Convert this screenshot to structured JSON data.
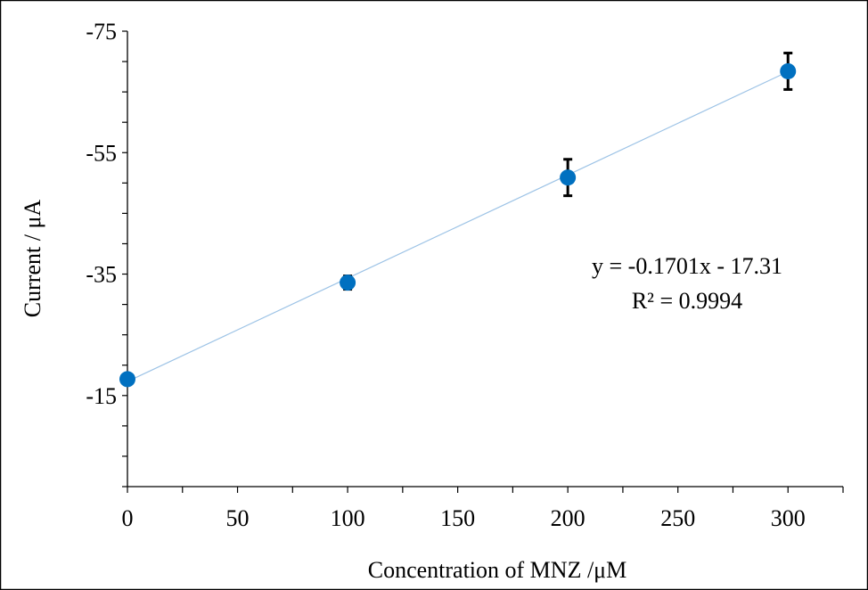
{
  "chart_data": {
    "type": "scatter",
    "xlabel": "Concentration of MNZ /μM",
    "ylabel": "Current  / μA",
    "xlim": [
      0,
      325
    ],
    "ylim": [
      -75,
      0
    ],
    "y_reversed": true,
    "x_ticks": [
      0,
      50,
      100,
      150,
      200,
      250,
      300
    ],
    "x_tick_labels": [
      "0",
      "50",
      "100",
      "150",
      "200",
      "250",
      "300"
    ],
    "y_ticks": [
      -75,
      -55,
      -35,
      -15
    ],
    "y_tick_labels": [
      "-75",
      "-55",
      "-35",
      "-15"
    ],
    "grid": false,
    "legend": "none",
    "series": [
      {
        "x": [
          0,
          100,
          200,
          300
        ],
        "y": [
          -17.7,
          -33.6,
          -50.9,
          -68.4
        ],
        "error": [
          0.6,
          1.1,
          3.0,
          3.0
        ],
        "color": "#0070C0"
      }
    ],
    "trendline": {
      "slope": -0.1701,
      "intercept": -17.31,
      "color": "#9DC3E6"
    },
    "annotations": {
      "equation": "y = -0.1701x - 17.31",
      "r_squared": "R² = 0.9994"
    }
  }
}
